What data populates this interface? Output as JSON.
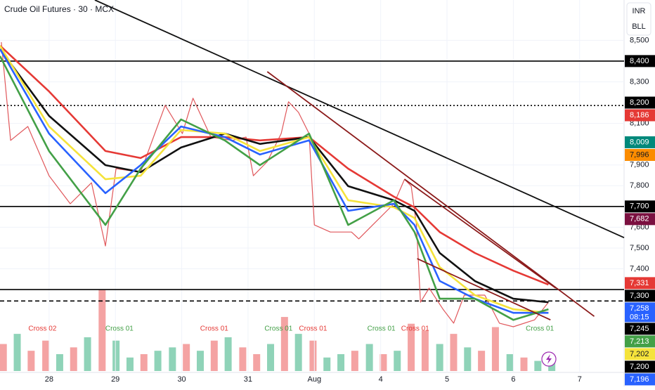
{
  "chart_data": {
    "type": "line",
    "title": "Crude Oil Futures · 30 · MCX",
    "buttons": [
      "INR",
      "BLL"
    ],
    "xlim": [
      -0.74,
      8.67
    ],
    "ylim": [
      6901,
      8694
    ],
    "xticks": [
      {
        "value": 0,
        "label": "28"
      },
      {
        "value": 1,
        "label": "29"
      },
      {
        "value": 2,
        "label": "30"
      },
      {
        "value": 3,
        "label": "31"
      },
      {
        "value": 4,
        "label": "Aug"
      },
      {
        "value": 5,
        "label": "4"
      },
      {
        "value": 6,
        "label": "5"
      },
      {
        "value": 7,
        "label": "6"
      },
      {
        "value": 8,
        "label": "7"
      }
    ],
    "yticks": [
      {
        "value": 7400,
        "label": "7,400"
      },
      {
        "value": 7500,
        "label": "7,500"
      },
      {
        "value": 7600,
        "label": "7,600"
      },
      {
        "value": 7800,
        "label": "7,800"
      },
      {
        "value": 7900,
        "label": "7,900"
      },
      {
        "value": 8100,
        "label": "8,100"
      },
      {
        "value": 8300,
        "label": "8,300"
      },
      {
        "value": 8500,
        "label": "8,500"
      }
    ],
    "price": {
      "color": "#e0575b",
      "x": [
        -0.72,
        -0.58,
        -0.32,
        0,
        0.32,
        0.64,
        0.85,
        1.01,
        1.38,
        1.75,
        2.01,
        2.17,
        2.44,
        2.76,
        2.97,
        3.08,
        3.29,
        3.5,
        3.61,
        3.76,
        3.92,
        4.0,
        4.24,
        4.56,
        4.67,
        4.88,
        5.2,
        5.36,
        5.46,
        5.54,
        5.6,
        5.73,
        5.94,
        6.1,
        6.26,
        6.57,
        6.79,
        7.0,
        7.32,
        7.53
      ],
      "values": [
        8491,
        8018,
        8085,
        7848,
        7713,
        7814,
        7510,
        7882,
        7865,
        8187,
        8051,
        8221,
        8034,
        8018,
        8034,
        7848,
        7916,
        8051,
        8204,
        8153,
        8051,
        7611,
        7577,
        7577,
        7544,
        7611,
        7713,
        7831,
        7798,
        7611,
        7239,
        7307,
        7205,
        7138,
        7273,
        7273,
        7138,
        7121,
        7154,
        7239
      ]
    },
    "ma_x": [
      -0.74,
      0,
      0.85,
      1.38,
      1.99,
      2.65,
      3.18,
      3.92,
      4.51,
      5.2,
      5.51,
      5.89,
      6.42,
      7.0,
      7.53
    ],
    "series": [
      {
        "color": "#e53935",
        "values": [
          8474,
          8254,
          7967,
          7933,
          8034,
          8034,
          8018,
          8034,
          7882,
          7747,
          7696,
          7577,
          7476,
          7391,
          7324
        ]
      },
      {
        "color": "#111111",
        "values": [
          8458,
          8136,
          7899,
          7865,
          7984,
          8051,
          8001,
          8034,
          7798,
          7730,
          7679,
          7476,
          7341,
          7256,
          7239
        ]
      },
      {
        "color": "#f5e33b",
        "values": [
          8474,
          8085,
          7831,
          7848,
          8068,
          8051,
          7967,
          8034,
          7730,
          7696,
          7645,
          7408,
          7273,
          7205,
          7188
        ]
      },
      {
        "color": "#2962ff",
        "values": [
          8458,
          8051,
          7764,
          7899,
          8085,
          8034,
          7950,
          8018,
          7679,
          7713,
          7611,
          7341,
          7256,
          7188,
          7188
        ]
      },
      {
        "color": "#43a047",
        "values": [
          8424,
          7967,
          7611,
          7882,
          8119,
          8018,
          7899,
          8051,
          7611,
          7730,
          7577,
          7256,
          7256,
          7154,
          7205
        ]
      }
    ],
    "levels": [
      {
        "value": 8400,
        "style": "solid"
      },
      {
        "value": 8186,
        "style": "dotted"
      },
      {
        "value": 7700,
        "style": "solid"
      },
      {
        "value": 7300,
        "style": "solid"
      },
      {
        "value": 7245,
        "style": "dashed"
      }
    ],
    "trend_lines": [
      {
        "color": "#111111",
        "x1": 0.69,
        "y1": 8694,
        "x2": 8.67,
        "y2": 7550
      },
      {
        "color": "#8b1a1a",
        "x1": 3.29,
        "y1": 8349,
        "x2": 8.22,
        "y2": 7171
      },
      {
        "color": "#8b1a1a",
        "x1": 5.36,
        "y1": 7831,
        "x2": 7.64,
        "y2": 7307
      },
      {
        "color": "#8b1a1a",
        "x1": 5.55,
        "y1": 7449,
        "x2": 7.56,
        "y2": 7154
      }
    ],
    "badges": [
      {
        "value": 8400,
        "label": "8,400",
        "color": "#000000"
      },
      {
        "value": 8200,
        "label": "8,200",
        "color": "#000000"
      },
      {
        "value": 8186,
        "label": "8,186",
        "color": "#e53935"
      },
      {
        "value": 8009,
        "label": "8,009",
        "color": "#00897b"
      },
      {
        "value": 7996,
        "label": "7,996",
        "color": "#fb8c00"
      },
      {
        "value": 7700,
        "label": "7,700",
        "color": "#000000"
      },
      {
        "value": 7682,
        "label": "7,682",
        "color": "#7b1040"
      },
      {
        "value": 7331,
        "label": "7,331",
        "color": "#e53935"
      },
      {
        "value": 7300,
        "label": "7,300",
        "color": "#000000"
      },
      {
        "value": 7258,
        "label": "7,258",
        "sub": "08:15",
        "color": "#2962ff"
      },
      {
        "value": 7245,
        "label": "7,245",
        "color": "#000000"
      },
      {
        "value": 7213,
        "label": "7,213",
        "color": "#43a047"
      },
      {
        "value": 7202,
        "label": "7,202",
        "color": "#f5e33b"
      },
      {
        "value": 7200,
        "label": "7,200",
        "color": "#000000"
      },
      {
        "value": 7196,
        "label": "7,196",
        "color": "#2962ff"
      }
    ],
    "annotations": [
      {
        "text": "Cross 02",
        "x": -0.1,
        "color": "#e53935"
      },
      {
        "text": "Cross 01",
        "x": 1.06,
        "color": "#43a047"
      },
      {
        "text": "Cross 01",
        "x": 2.49,
        "color": "#e53935"
      },
      {
        "text": "Cross 01",
        "x": 3.46,
        "color": "#43a047"
      },
      {
        "text": "Cross 01",
        "x": 3.98,
        "color": "#e53935"
      },
      {
        "text": "Cross 01",
        "x": 5.01,
        "color": "#43a047"
      },
      {
        "text": "Cross 01",
        "x": 5.52,
        "color": "#e53935"
      },
      {
        "text": "Cross 01",
        "x": 7.4,
        "color": "#43a047"
      }
    ],
    "volume": {
      "vlim": [
        0,
        130
      ],
      "x": [
        -0.69,
        -0.48,
        -0.27,
        -0.05,
        0.16,
        0.37,
        0.58,
        0.8,
        1.01,
        1.22,
        1.43,
        1.64,
        1.86,
        2.07,
        2.28,
        2.49,
        2.7,
        2.92,
        3.13,
        3.34,
        3.55,
        3.76,
        3.98,
        4.19,
        4.4,
        4.61,
        4.83,
        5.04,
        5.25,
        5.46,
        5.67,
        5.89,
        6.1,
        6.31,
        6.52,
        6.73,
        6.95,
        7.16,
        7.37,
        7.58
      ],
      "values": [
        40,
        55,
        30,
        45,
        25,
        35,
        50,
        120,
        45,
        20,
        25,
        30,
        35,
        40,
        30,
        45,
        50,
        35,
        25,
        40,
        80,
        55,
        45,
        20,
        25,
        30,
        40,
        25,
        30,
        70,
        60,
        40,
        55,
        35,
        30,
        65,
        25,
        20,
        15,
        20
      ],
      "colors": [
        "#f4a3a3",
        "#8fd3b8",
        "#f4a3a3",
        "#f4a3a3",
        "#8fd3b8",
        "#f4a3a3",
        "#8fd3b8",
        "#f4a3a3",
        "#8fd3b8",
        "#8fd3b8",
        "#f4a3a3",
        "#8fd3b8",
        "#8fd3b8",
        "#f4a3a3",
        "#8fd3b8",
        "#f4a3a3",
        "#8fd3b8",
        "#f4a3a3",
        "#f4a3a3",
        "#8fd3b8",
        "#f4a3a3",
        "#8fd3b8",
        "#f4a3a3",
        "#8fd3b8",
        "#8fd3b8",
        "#f4a3a3",
        "#8fd3b8",
        "#f4a3a3",
        "#8fd3b8",
        "#f4a3a3",
        "#f4a3a3",
        "#8fd3b8",
        "#f4a3a3",
        "#8fd3b8",
        "#f4a3a3",
        "#f4a3a3",
        "#8fd3b8",
        "#f4a3a3",
        "#8fd3b8",
        "#8fd3b8"
      ]
    }
  }
}
